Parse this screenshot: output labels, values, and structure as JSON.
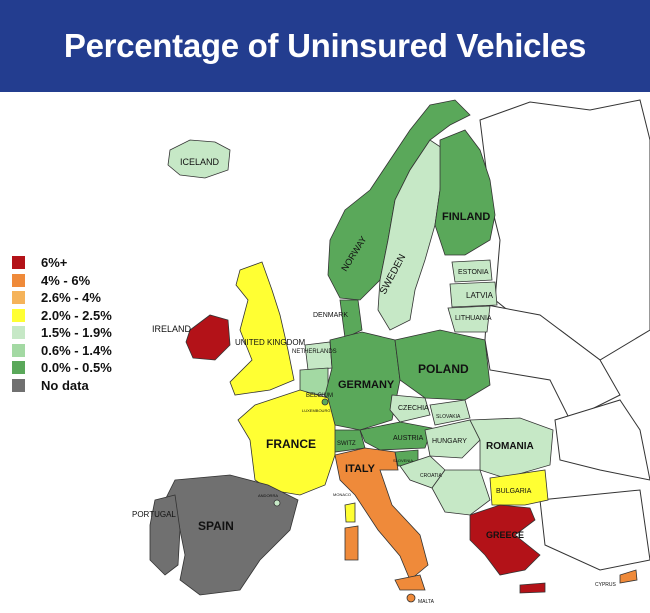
{
  "title": "Percentage of Uninsured Vehicles",
  "colors": {
    "header_bg": "#233d8f",
    "cat_6plus": "#b31218",
    "cat_4_6": "#ef8a3a",
    "cat_2_6_4": "#f5b35a",
    "cat_2_2_5": "#ffff33",
    "cat_1_5_1_9": "#c6e8c6",
    "cat_0_6_1_4": "#a3d9a3",
    "cat_0_0_5": "#5aa85a",
    "no_data": "#707070"
  },
  "legend": [
    {
      "label": "6%+",
      "color": "#b31218"
    },
    {
      "label": "4% - 6%",
      "color": "#ef8a3a"
    },
    {
      "label": "2.6% - 4%",
      "color": "#f5b35a"
    },
    {
      "label": "2.0% - 2.5%",
      "color": "#ffff33"
    },
    {
      "label": "1.5% - 1.9%",
      "color": "#c6e8c6"
    },
    {
      "label": "0.6% - 1.4%",
      "color": "#a3d9a3"
    },
    {
      "label": "0.0% - 0.5%",
      "color": "#5aa85a"
    },
    {
      "label": "No data",
      "color": "#707070"
    }
  ],
  "countries": {
    "iceland": "ICELAND",
    "norway": "NORWAY",
    "sweden": "SWEDEN",
    "finland": "FINLAND",
    "estonia": "ESTONIA",
    "latvia": "LATVIA",
    "lithuania": "LITHUANIA",
    "denmark": "DENMARK",
    "ireland": "IRELAND",
    "united_kingdom": "UNITED KINGDOM",
    "netherlands": "NETHERLANDS",
    "belgium": "BELGIUM",
    "luxembourg": "LUXEMBOURG",
    "germany": "GERMANY",
    "poland": "POLAND",
    "czechia": "CZECHIA",
    "slovakia": "SLOVAKIA",
    "austria": "AUSTRIA",
    "hungary": "HUNGARY",
    "romania": "ROMANIA",
    "switz": "SWITZ",
    "slovenia": "SLOVENIA",
    "croatia": "CROATIA",
    "france": "FRANCE",
    "andorra": "ANDORRA",
    "monaco": "MONACO",
    "italy": "ITALY",
    "bulgaria": "BULGARIA",
    "portugal": "PORTUGAL",
    "spain": "SPAIN",
    "greece": "GREECE",
    "malta": "MALTA",
    "cyprus": "CYPRUS"
  }
}
